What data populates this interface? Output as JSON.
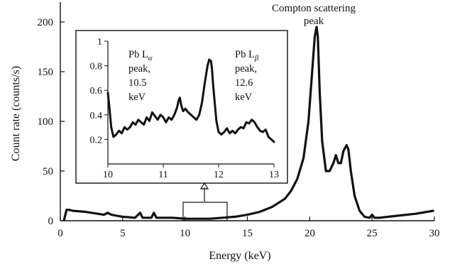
{
  "chart_data": [
    {
      "type": "line",
      "xlabel": "Energy (keV)",
      "ylabel": "Count rate (counts/s)",
      "xlim": [
        0,
        30
      ],
      "ylim": [
        0,
        220
      ],
      "xticks": [
        0,
        5,
        10,
        15,
        20,
        25,
        30
      ],
      "yticks": [
        0,
        50,
        100,
        150,
        200
      ],
      "annotation": [
        "Compton scattering",
        "peak"
      ],
      "series": [
        {
          "x": [
            0.3,
            0.5,
            0.7,
            1,
            2,
            3,
            3.5,
            3.8,
            4.1,
            5,
            6,
            6.4,
            6.6,
            6.9,
            7.3,
            7.5,
            7.7,
            8,
            9,
            10,
            11,
            12,
            13,
            14,
            15,
            16,
            17,
            18,
            18.5,
            19,
            19.5,
            19.9,
            20.2,
            20.4,
            20.55,
            20.65,
            20.8,
            21,
            21.3,
            21.6,
            21.9,
            22.1,
            22.3,
            22.5,
            22.7,
            22.95,
            23.1,
            23.3,
            23.6,
            24,
            24.4,
            24.8,
            25,
            25.2,
            25.6,
            27,
            28.5,
            29.9
          ],
          "values": [
            1,
            11,
            11,
            10,
            9,
            7,
            6,
            8,
            6,
            4,
            3,
            8,
            3,
            3,
            3,
            8,
            3,
            3,
            3,
            2,
            2,
            2,
            3,
            4,
            6,
            9,
            14,
            22,
            30,
            42,
            63,
            100,
            150,
            185,
            195,
            185,
            130,
            80,
            50,
            50,
            58,
            66,
            58,
            58,
            70,
            76,
            72,
            50,
            25,
            10,
            4,
            3,
            6,
            3,
            3,
            5,
            7,
            10
          ]
        }
      ]
    },
    {
      "type": "line",
      "xlim": [
        10,
        13
      ],
      "ylim": [
        0,
        1
      ],
      "xticks": [
        10,
        11,
        12,
        13
      ],
      "yticks": [
        0.2,
        0.4,
        0.6,
        0.8,
        1
      ],
      "annotations": {
        "alpha": {
          "label": "Pb L",
          "subscript": "α",
          "lines": [
            "peak,",
            "10.5",
            "keV"
          ]
        },
        "beta": {
          "label": "Pb L",
          "subscript": "β",
          "lines": [
            "peak,",
            "12.6",
            "keV"
          ]
        }
      },
      "series": [
        {
          "x": [
            10,
            10.03,
            10.06,
            10.1,
            10.15,
            10.2,
            10.25,
            10.3,
            10.35,
            10.4,
            10.45,
            10.5,
            10.55,
            10.6,
            10.65,
            10.7,
            10.75,
            10.8,
            10.85,
            10.9,
            10.95,
            11,
            11.05,
            11.1,
            11.15,
            11.2,
            11.25,
            11.28,
            11.3,
            11.33,
            11.36,
            11.4,
            11.45,
            11.5,
            11.55,
            11.6,
            11.65,
            11.7,
            11.75,
            11.8,
            11.83,
            11.86,
            11.88,
            11.9,
            11.93,
            11.96,
            12,
            12.05,
            12.1,
            12.15,
            12.2,
            12.25,
            12.3,
            12.35,
            12.4,
            12.45,
            12.5,
            12.55,
            12.6,
            12.65,
            12.7,
            12.75,
            12.8,
            12.85,
            12.9,
            12.95,
            13
          ],
          "values": [
            0.58,
            0.45,
            0.3,
            0.22,
            0.24,
            0.27,
            0.25,
            0.3,
            0.28,
            0.3,
            0.34,
            0.32,
            0.36,
            0.34,
            0.32,
            0.38,
            0.35,
            0.42,
            0.39,
            0.36,
            0.4,
            0.38,
            0.34,
            0.38,
            0.36,
            0.4,
            0.46,
            0.52,
            0.54,
            0.47,
            0.43,
            0.45,
            0.42,
            0.4,
            0.38,
            0.36,
            0.4,
            0.5,
            0.66,
            0.8,
            0.85,
            0.84,
            0.78,
            0.65,
            0.5,
            0.35,
            0.26,
            0.24,
            0.26,
            0.29,
            0.25,
            0.27,
            0.25,
            0.28,
            0.3,
            0.29,
            0.34,
            0.33,
            0.36,
            0.34,
            0.3,
            0.27,
            0.26,
            0.28,
            0.22,
            0.2,
            0.18
          ]
        }
      ]
    }
  ]
}
